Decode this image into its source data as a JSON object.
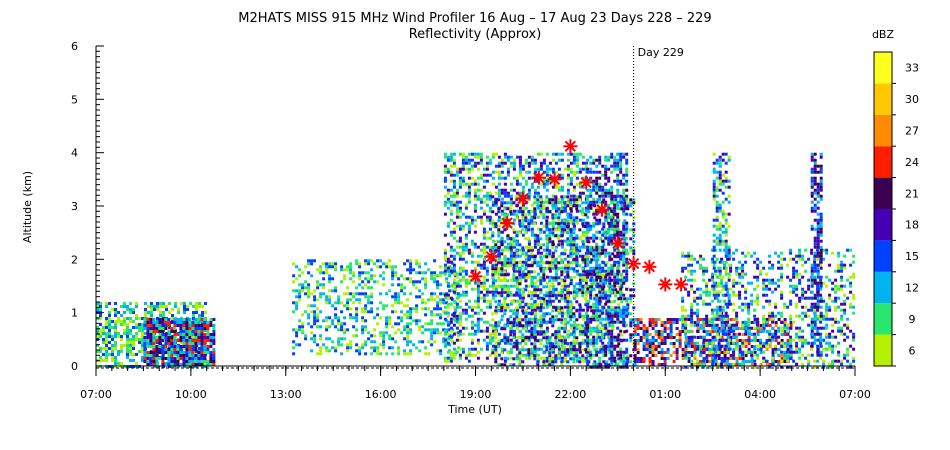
{
  "chart_data": {
    "type": "heatmap",
    "title": "M2HATS MISS 915 MHz Wind Profiler  16 Aug – 17 Aug 23 Days 228 – 229",
    "subtitle": "Reflectivity (Approx)",
    "xlabel": "Time (UT)",
    "ylabel": "Altitude (km)",
    "x_tick_labels": [
      "07:00",
      "10:00",
      "13:00",
      "16:00",
      "19:00",
      "22:00",
      "01:00",
      "04:00",
      "07:00"
    ],
    "x_range_hours_since_start": [
      0,
      24
    ],
    "y_ticks": [
      0,
      1,
      2,
      3,
      4,
      5,
      6
    ],
    "ylim": [
      0,
      6
    ],
    "day_marker": {
      "label": "Day 229",
      "hour_since_start": 17
    },
    "colorbar": {
      "label": "dBZ",
      "ticks": [
        6,
        9,
        12,
        15,
        18,
        21,
        24,
        27,
        30,
        33
      ],
      "colors": [
        "#b4f000",
        "#28e66e",
        "#00b4f0",
        "#0040ff",
        "#4600b4",
        "#3c0050",
        "#ff1e00",
        "#ff8c00",
        "#ffc800",
        "#ffff1e"
      ]
    },
    "markers": [
      {
        "time_hour": 12.0,
        "altitude_km": 1.68
      },
      {
        "time_hour": 12.5,
        "altitude_km": 2.05
      },
      {
        "time_hour": 13.0,
        "altitude_km": 2.68
      },
      {
        "time_hour": 13.5,
        "altitude_km": 3.14
      },
      {
        "time_hour": 14.0,
        "altitude_km": 3.53
      },
      {
        "time_hour": 14.5,
        "altitude_km": 3.5
      },
      {
        "time_hour": 15.0,
        "altitude_km": 4.12
      },
      {
        "time_hour": 15.5,
        "altitude_km": 3.44
      },
      {
        "time_hour": 16.0,
        "altitude_km": 2.93
      },
      {
        "time_hour": 16.5,
        "altitude_km": 2.3
      },
      {
        "time_hour": 17.0,
        "altitude_km": 1.92
      },
      {
        "time_hour": 17.5,
        "altitude_km": 1.86
      },
      {
        "time_hour": 18.0,
        "altitude_km": 1.53
      },
      {
        "time_hour": 18.5,
        "altitude_km": 1.53
      }
    ],
    "legend": "right colorbar",
    "grid": false
  }
}
